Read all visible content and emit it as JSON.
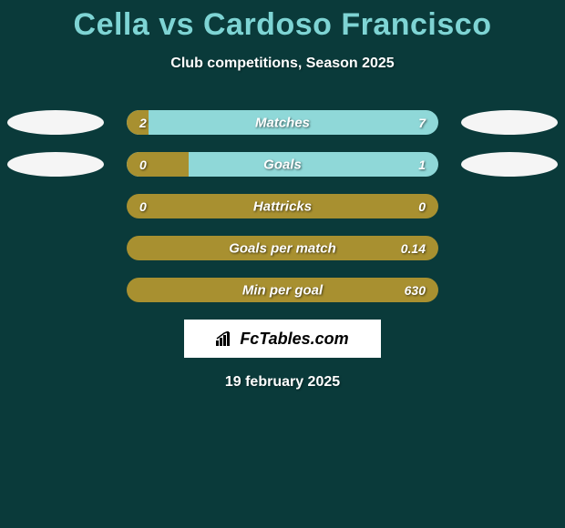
{
  "title": "Cella vs Cardoso Francisco",
  "subtitle": "Club competitions, Season 2025",
  "date": "19 february 2025",
  "logo_text": "FcTables.com",
  "colors": {
    "background": "#0a3a3a",
    "title": "#7ed4d4",
    "text": "#ffffff",
    "bar_bg": "#a89030",
    "fill_left": "#8fd8d8",
    "fill_right": "#8fd8d8",
    "ellipse_left": "#f5f5f5",
    "ellipse_right": "#f5f5f5"
  },
  "stats": [
    {
      "label": "Matches",
      "left_value": "2",
      "right_value": "7",
      "left_pct": 7,
      "right_pct": 0,
      "show_ellipse": true,
      "ellipse_left_color": "#f5f5f5",
      "ellipse_right_color": "#f5f5f5",
      "bar_bg": "#8fd8d8",
      "left_fill_color": "#a89030"
    },
    {
      "label": "Goals",
      "left_value": "0",
      "right_value": "1",
      "left_pct": 20,
      "right_pct": 0,
      "show_ellipse": true,
      "ellipse_left_color": "#f5f5f5",
      "ellipse_right_color": "#f5f5f5",
      "bar_bg": "#8fd8d8",
      "left_fill_color": "#a89030"
    },
    {
      "label": "Hattricks",
      "left_value": "0",
      "right_value": "0",
      "left_pct": 0,
      "right_pct": 0,
      "show_ellipse": false,
      "bar_bg": "#a89030"
    },
    {
      "label": "Goals per match",
      "left_value": "",
      "right_value": "0.14",
      "left_pct": 0,
      "right_pct": 0,
      "show_ellipse": false,
      "bar_bg": "#a89030"
    },
    {
      "label": "Min per goal",
      "left_value": "",
      "right_value": "630",
      "left_pct": 0,
      "right_pct": 0,
      "show_ellipse": false,
      "bar_bg": "#a89030"
    }
  ]
}
